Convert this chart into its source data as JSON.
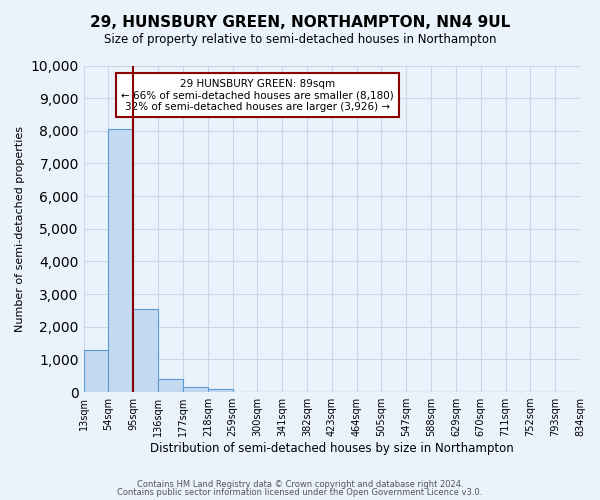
{
  "title": "29, HUNSBURY GREEN, NORTHAMPTON, NN4 9UL",
  "subtitle": "Size of property relative to semi-detached houses in Northampton",
  "xlabel": "Distribution of semi-detached houses by size in Northampton",
  "ylabel": "Number of semi-detached properties",
  "bin_labels": [
    "13sqm",
    "54sqm",
    "95sqm",
    "136sqm",
    "177sqm",
    "218sqm",
    "259sqm",
    "300sqm",
    "341sqm",
    "382sqm",
    "423sqm",
    "464sqm",
    "505sqm",
    "547sqm",
    "588sqm",
    "629sqm",
    "670sqm",
    "711sqm",
    "752sqm",
    "793sqm",
    "834sqm"
  ],
  "bar_heights": [
    1300,
    8050,
    2550,
    400,
    150,
    100,
    0,
    0,
    0,
    0,
    0,
    0,
    0,
    0,
    0,
    0,
    0,
    0,
    0,
    0
  ],
  "bar_color": "#c5d9f0",
  "bar_edge_color": "#5b9bd5",
  "property_line_color": "#8B0000",
  "annotation_title": "29 HUNSBURY GREEN: 89sqm",
  "annotation_line1": "← 66% of semi-detached houses are smaller (8,180)",
  "annotation_line2": "32% of semi-detached houses are larger (3,926) →",
  "annotation_box_color": "#ffffff",
  "annotation_box_edge_color": "#8B0000",
  "ylim": [
    0,
    10000
  ],
  "yticks": [
    0,
    1000,
    2000,
    3000,
    4000,
    5000,
    6000,
    7000,
    8000,
    9000,
    10000
  ],
  "grid_color": "#c8d8e8",
  "bg_color": "#eaf2fb",
  "footer1": "Contains HM Land Registry data © Crown copyright and database right 2024.",
  "footer2": "Contains public sector information licensed under the Open Government Licence v3.0."
}
